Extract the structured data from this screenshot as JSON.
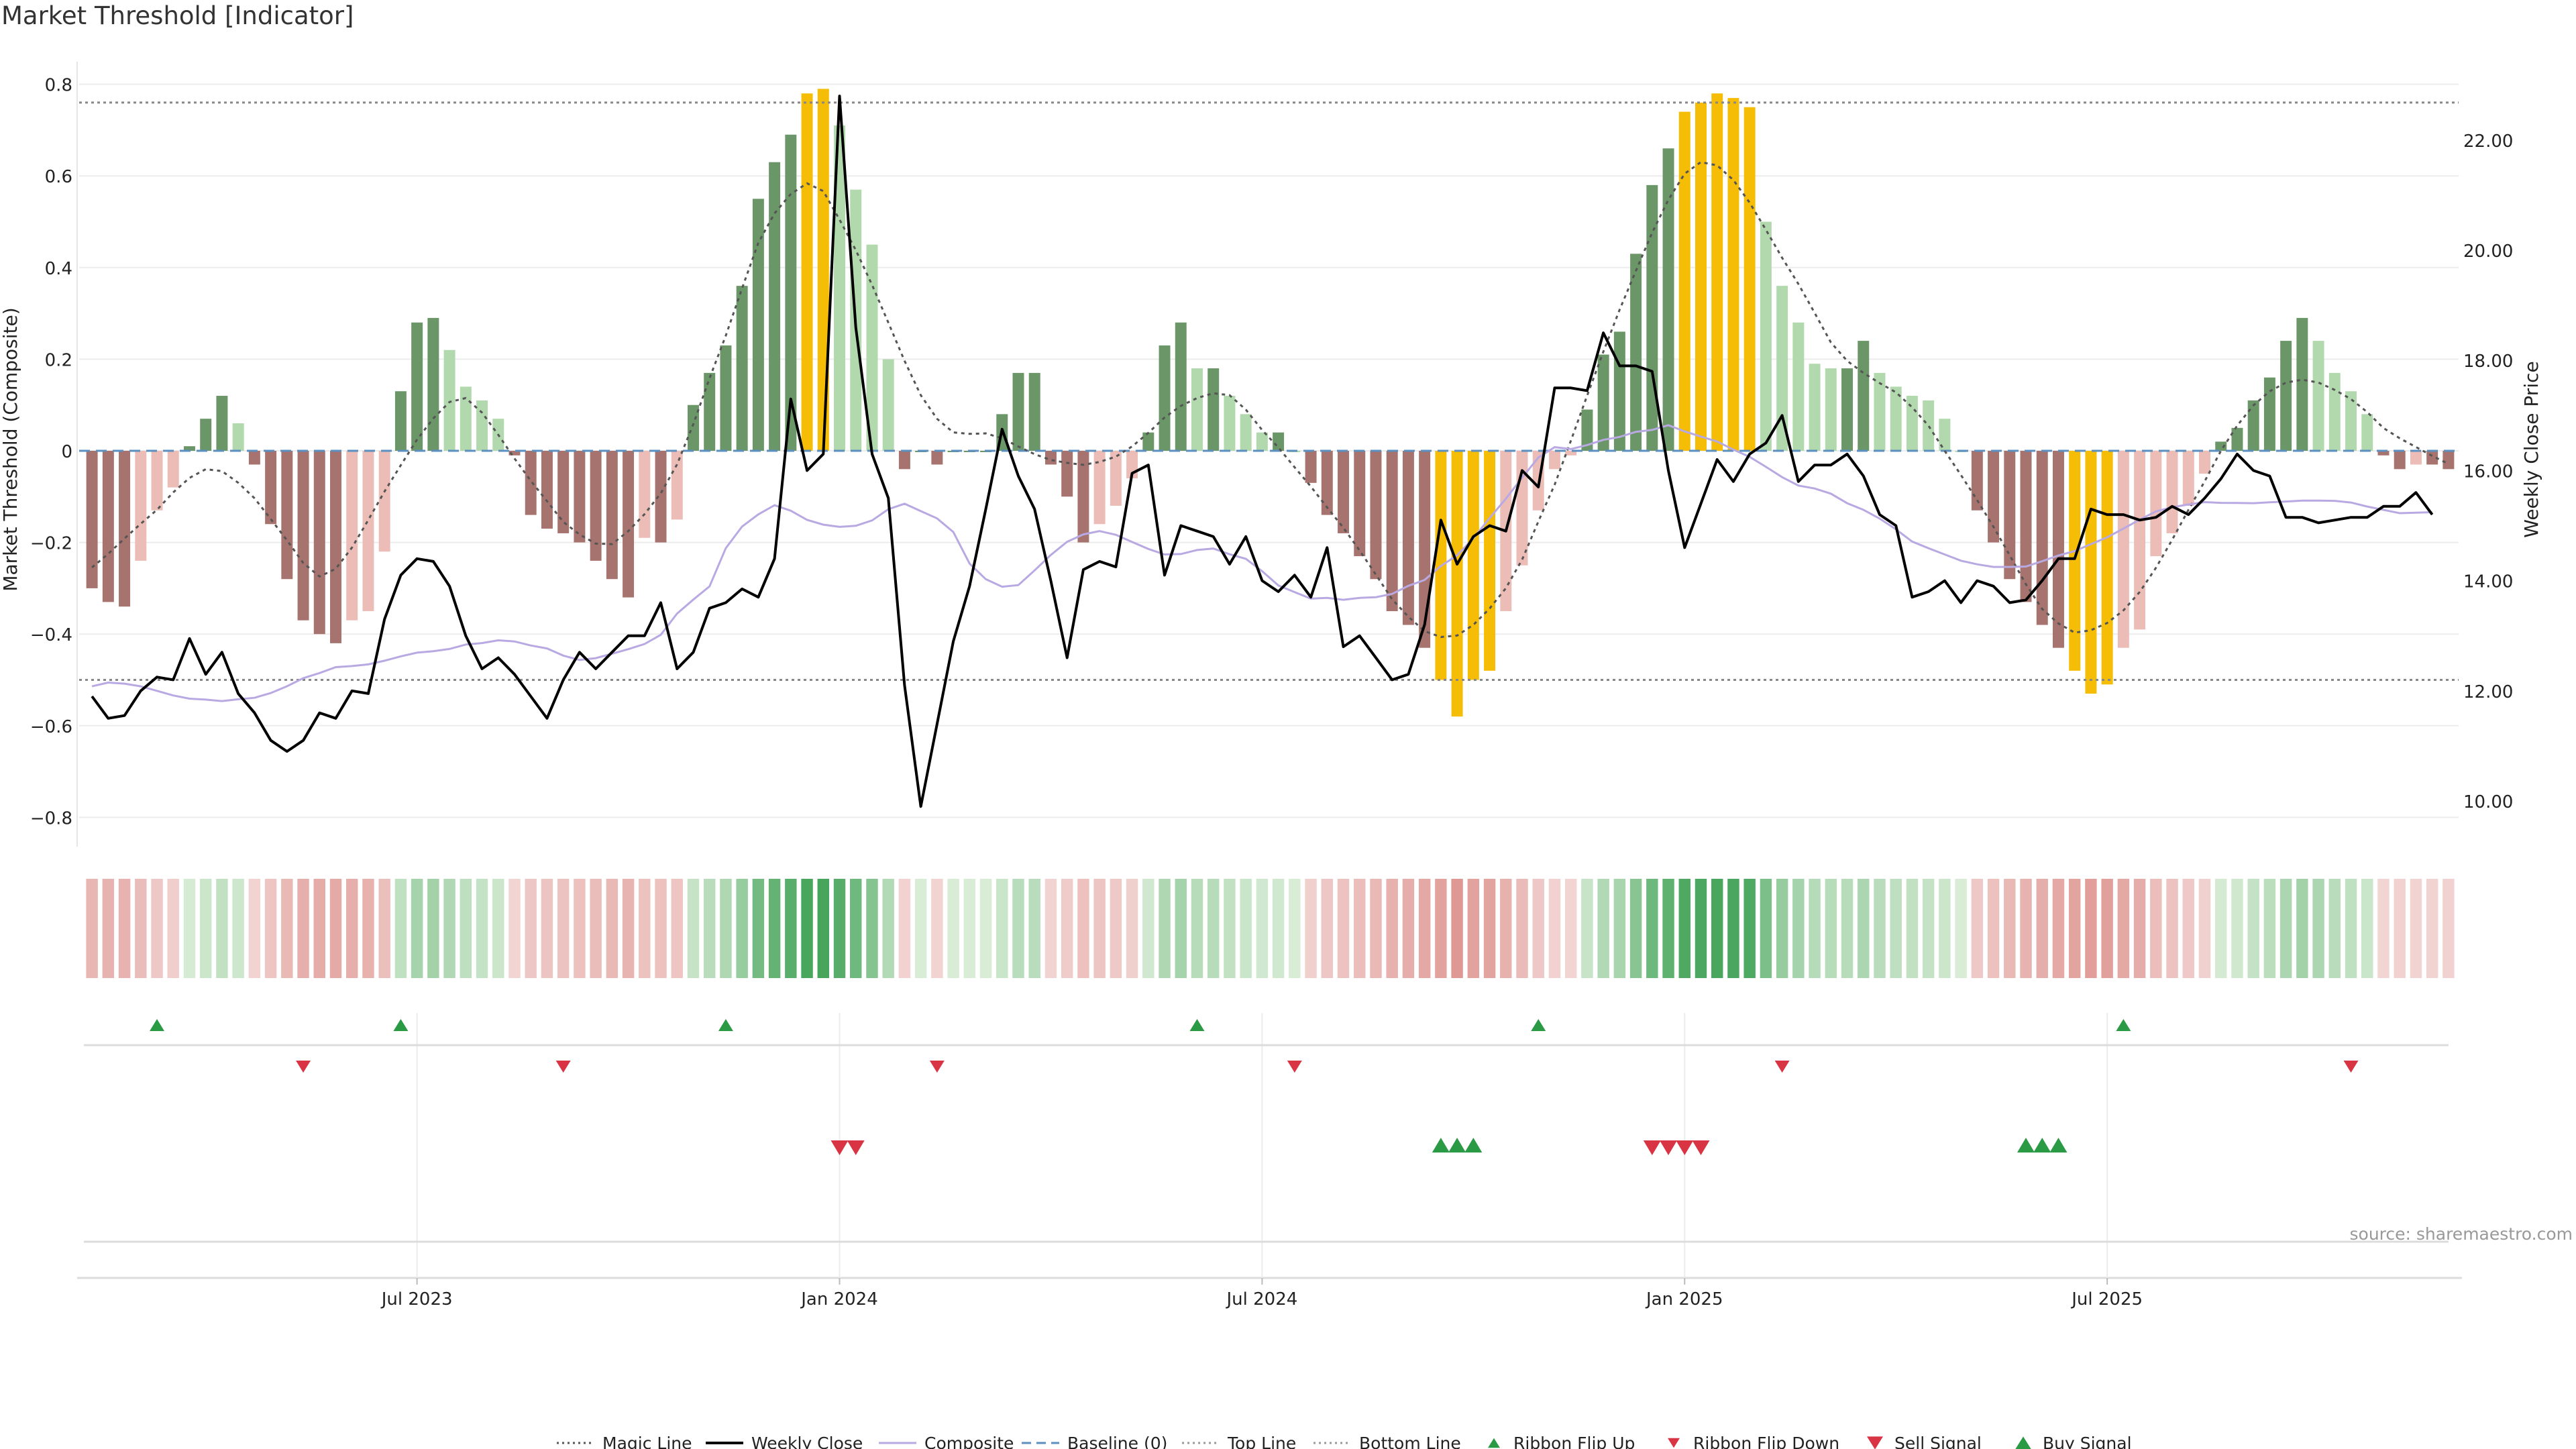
{
  "title": "Market Threshold [Indicator]",
  "source": "source: sharemaestro.com",
  "chart_data": {
    "type": "bar",
    "ylabel_left": "Market Threshold (Composite)",
    "ylabel_right": "Weekly Close Price",
    "ylim_left": [
      -0.88,
      0.82
    ],
    "ylim_right": [
      9.4,
      23.4
    ],
    "yticks_left": [
      "0.8",
      "0.6",
      "0.4",
      "0.2",
      "0",
      "−0.2",
      "−0.4",
      "−0.6",
      "−0.8"
    ],
    "yticks_left_values": [
      0.8,
      0.6,
      0.4,
      0.2,
      0,
      -0.2,
      -0.4,
      -0.6,
      -0.8
    ],
    "yticks_right": [
      "22.00",
      "20.00",
      "18.00",
      "16.00",
      "14.00",
      "12.00",
      "10.00"
    ],
    "yticks_right_values": [
      22,
      20,
      18,
      16,
      14,
      12,
      10
    ],
    "xticks": [
      "Jul 2023",
      "Jan 2024",
      "Jul 2024",
      "Jan 2025",
      "Jul 2025"
    ],
    "xtick_weeks": [
      20.5,
      46.5,
      72.5,
      98.5,
      124.5
    ],
    "top_line": 0.76,
    "bottom_line": -0.5,
    "baseline": 0,
    "composite": [
      -0.3,
      -0.33,
      -0.34,
      -0.24,
      -0.13,
      -0.08,
      0.01,
      0.07,
      0.12,
      0.06,
      -0.03,
      -0.16,
      -0.28,
      -0.37,
      -0.4,
      -0.42,
      -0.37,
      -0.35,
      -0.22,
      0.13,
      0.28,
      0.29,
      0.22,
      0.14,
      0.11,
      0.07,
      -0.01,
      -0.14,
      -0.17,
      -0.18,
      -0.2,
      -0.24,
      -0.28,
      -0.32,
      -0.19,
      -0.2,
      -0.15,
      0.1,
      0.17,
      0.23,
      0.36,
      0.55,
      0.63,
      0.69,
      0.78,
      0.79,
      0.71,
      0.57,
      0.45,
      0.2,
      -0.04,
      0.0,
      -0.03,
      0.0,
      0.0,
      0.0,
      0.08,
      0.17,
      0.17,
      -0.03,
      -0.1,
      -0.2,
      -0.16,
      -0.12,
      -0.06,
      0.04,
      0.23,
      0.28,
      0.18,
      0.18,
      0.12,
      0.08,
      0.04,
      0.04,
      0.0,
      -0.07,
      -0.14,
      -0.18,
      -0.23,
      -0.28,
      -0.35,
      -0.38,
      -0.43,
      -0.5,
      -0.58,
      -0.5,
      -0.48,
      -0.35,
      -0.25,
      -0.13,
      -0.04,
      -0.01,
      0.09,
      0.21,
      0.26,
      0.43,
      0.58,
      0.66,
      0.74,
      0.76,
      0.78,
      0.77,
      0.75,
      0.5,
      0.36,
      0.28,
      0.19,
      0.18,
      0.18,
      0.24,
      0.17,
      0.14,
      0.12,
      0.11,
      0.07,
      0.0,
      -0.13,
      -0.2,
      -0.28,
      -0.33,
      -0.38,
      -0.43,
      -0.48,
      -0.53,
      -0.51,
      -0.43,
      -0.39,
      -0.23,
      -0.18,
      -0.12,
      -0.05,
      0.02,
      0.05,
      0.11,
      0.16,
      0.24,
      0.29,
      0.24,
      0.17,
      0.13,
      0.08,
      -0.01,
      -0.04,
      -0.03,
      -0.03,
      -0.04
    ],
    "close": [
      11.9,
      11.5,
      11.55,
      12.0,
      12.25,
      12.2,
      12.95,
      12.3,
      12.7,
      11.95,
      11.6,
      11.1,
      10.9,
      11.1,
      11.6,
      11.5,
      12.0,
      11.95,
      13.3,
      14.1,
      14.4,
      14.35,
      13.9,
      13.0,
      12.4,
      12.6,
      12.3,
      11.9,
      11.5,
      12.2,
      12.7,
      12.4,
      12.7,
      13.0,
      13.0,
      13.6,
      12.4,
      12.7,
      13.5,
      13.6,
      13.85,
      13.7,
      14.4,
      17.3,
      16.0,
      16.3,
      22.8,
      18.6,
      16.3,
      15.5,
      12.1,
      9.9,
      11.4,
      12.9,
      13.9,
      15.3,
      16.75,
      15.9,
      15.3,
      14.0,
      12.6,
      14.2,
      14.35,
      14.25,
      15.95,
      16.1,
      14.1,
      15.0,
      14.9,
      14.8,
      14.3,
      14.8,
      14.0,
      13.8,
      14.1,
      13.7,
      14.6,
      12.8,
      13.0,
      12.6,
      12.2,
      12.3,
      13.2,
      15.1,
      14.3,
      14.8,
      15.0,
      14.9,
      16.0,
      15.7,
      17.5,
      17.5,
      17.45,
      18.5,
      17.9,
      17.9,
      17.8,
      16.0,
      14.6,
      15.4,
      16.2,
      15.8,
      16.3,
      16.5,
      17.0,
      15.8,
      16.1,
      16.1,
      16.3,
      15.9,
      15.2,
      15.0,
      13.7,
      13.8,
      14.0,
      13.6,
      14.0,
      13.9,
      13.6,
      13.65,
      14.0,
      14.4,
      14.4,
      15.3,
      15.2,
      15.2,
      15.1,
      15.15,
      15.35,
      15.2,
      15.5,
      15.85,
      16.3,
      16.0,
      15.9,
      15.15,
      15.15,
      15.05,
      15.1,
      15.15,
      15.15,
      15.35,
      15.35,
      15.6,
      15.2
    ],
    "series": [
      {
        "name": "Magic Line",
        "style": "dotted",
        "color": "#555555"
      },
      {
        "name": "Weekly Close",
        "style": "solid",
        "color": "#000000"
      },
      {
        "name": "Composite",
        "style": "solid",
        "color": "#b9a9e3"
      },
      {
        "name": "Baseline (0)",
        "style": "dashed",
        "color": "#5a8fbf"
      },
      {
        "name": "Top Line",
        "style": "dotted",
        "color": "#999999"
      },
      {
        "name": "Bottom Line",
        "style": "dotted",
        "color": "#999999"
      }
    ],
    "ribbon_flip_up_weeks": [
      4,
      19,
      39,
      68,
      89,
      125
    ],
    "ribbon_flip_down_weeks": [
      13,
      29,
      52,
      74,
      104,
      139
    ],
    "sell_signal_weeks": [
      46,
      47,
      96,
      97,
      98,
      99
    ],
    "buy_signal_weeks": [
      83,
      84,
      85,
      119,
      120,
      121
    ],
    "legend": [
      "Magic Line",
      "Weekly Close",
      "Composite",
      "Baseline (0)",
      "Top Line",
      "Bottom Line",
      "Ribbon Flip Up",
      "Ribbon Flip Down",
      "Sell Signal",
      "Buy Signal"
    ],
    "colors": {
      "strong_pos": "#6a9668",
      "weak_pos": "#b2d9ad",
      "strong_neg": "#a7736e",
      "weak_neg": "#ecbcb6",
      "extreme": "#f5bd05",
      "flip_up": "#2a9a45",
      "flip_down": "#d93444"
    }
  }
}
